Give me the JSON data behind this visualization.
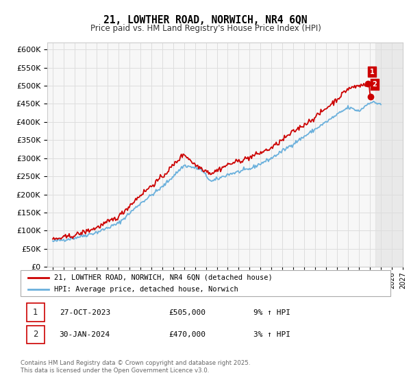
{
  "title": "21, LOWTHER ROAD, NORWICH, NR4 6QN",
  "subtitle": "Price paid vs. HM Land Registry's House Price Index (HPI)",
  "legend_line1": "21, LOWTHER ROAD, NORWICH, NR4 6QN (detached house)",
  "legend_line2": "HPI: Average price, detached house, Norwich",
  "transaction1_date": "27-OCT-2023",
  "transaction1_price": 505000,
  "transaction1_hpi": "9% ↑ HPI",
  "transaction2_date": "30-JAN-2024",
  "transaction2_price": 470000,
  "transaction2_hpi": "3% ↑ HPI",
  "footer": "Contains HM Land Registry data © Crown copyright and database right 2025.\nThis data is licensed under the Open Government Licence v3.0.",
  "hpi_color": "#6ab0dc",
  "price_color": "#cc0000",
  "background_color": "#ffffff",
  "grid_color": "#dddddd",
  "ylim": [
    0,
    620000
  ],
  "yticks": [
    0,
    50000,
    100000,
    150000,
    200000,
    250000,
    300000,
    350000,
    400000,
    450000,
    500000,
    550000,
    600000
  ],
  "xlim_start": 1994.5,
  "xlim_end": 2027
}
